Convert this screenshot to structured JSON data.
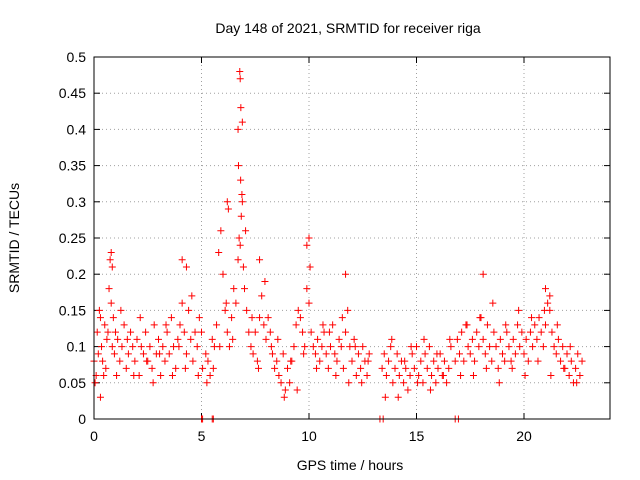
{
  "chart_data": {
    "type": "scatter",
    "title": "Day 148 of 2021, SRMTID for receiver riga",
    "xlabel": "GPS time / hours",
    "ylabel": "SRMTID / TECUs",
    "xlim": [
      0,
      24
    ],
    "ylim": [
      0,
      0.5
    ],
    "xticks": [
      0,
      5,
      10,
      15,
      20
    ],
    "xtick_labels": [
      "0",
      "5",
      "10",
      "15",
      "20"
    ],
    "yticks": [
      0,
      0.05,
      0.1,
      0.15,
      0.2,
      0.25,
      0.3,
      0.35,
      0.4,
      0.45,
      0.5
    ],
    "ytick_labels": [
      "0",
      "0.05",
      "0.1",
      "0.15",
      "0.2",
      "0.25",
      "0.3",
      "0.35",
      "0.4",
      "0.45",
      "0.5"
    ],
    "grid": true,
    "legend": "none",
    "marker_color": "#ff0000",
    "marker": "plus",
    "series": [
      {
        "name": "SRMTID",
        "x": [
          0.0,
          0.1,
          0.15,
          0.2,
          0.25,
          0.3,
          0.35,
          0.4,
          0.5,
          0.55,
          0.6,
          0.7,
          0.75,
          0.8,
          0.85,
          0.9,
          0.95,
          1.0,
          1.1,
          1.2,
          1.3,
          1.4,
          1.5,
          1.6,
          1.7,
          1.8,
          1.9,
          2.0,
          2.1,
          2.2,
          2.3,
          2.4,
          2.5,
          2.6,
          2.7,
          2.8,
          2.9,
          3.0,
          3.1,
          3.2,
          3.3,
          3.4,
          3.5,
          3.6,
          3.7,
          3.8,
          3.9,
          4.0,
          4.1,
          4.2,
          4.3,
          4.4,
          4.5,
          4.6,
          4.7,
          4.8,
          4.9,
          5.0,
          5.05,
          5.6,
          5.2,
          5.3,
          5.4,
          5.5,
          5.7,
          5.8,
          5.9,
          6.0,
          6.1,
          6.2,
          6.3,
          6.4,
          6.5,
          6.6,
          6.7,
          6.75,
          6.8,
          6.85,
          6.9,
          6.95,
          7.0,
          7.1,
          7.2,
          7.3,
          7.4,
          7.5,
          7.6,
          7.7,
          7.8,
          7.9,
          8.0,
          8.1,
          8.2,
          8.3,
          8.4,
          8.5,
          8.6,
          8.7,
          8.8,
          8.9,
          9.0,
          9.1,
          9.2,
          9.3,
          9.4,
          9.5,
          9.6,
          9.7,
          9.8,
          9.9,
          10.0,
          10.1,
          10.2,
          10.3,
          10.4,
          10.5,
          10.6,
          10.7,
          10.8,
          10.9,
          11.0,
          11.1,
          11.2,
          11.3,
          11.4,
          11.5,
          11.6,
          11.7,
          11.8,
          11.9,
          12.0,
          12.1,
          12.2,
          12.3,
          12.4,
          12.5,
          12.6,
          12.7,
          12.8,
          13.4,
          13.5,
          13.6,
          13.7,
          13.8,
          13.9,
          14.0,
          14.1,
          14.2,
          14.3,
          14.4,
          14.5,
          14.6,
          14.7,
          14.8,
          14.9,
          15.0,
          15.1,
          15.2,
          15.3,
          15.4,
          15.5,
          15.6,
          15.7,
          15.8,
          15.9,
          16.0,
          16.1,
          16.2,
          16.3,
          16.4,
          16.5,
          16.6,
          16.8,
          16.9,
          17.0,
          17.1,
          17.2,
          17.3,
          17.4,
          17.5,
          17.6,
          17.7,
          17.8,
          17.9,
          18.0,
          18.1,
          18.2,
          18.3,
          18.4,
          18.5,
          18.6,
          18.7,
          18.8,
          18.9,
          19.0,
          19.1,
          19.2,
          19.3,
          19.4,
          19.5,
          19.6,
          19.7,
          19.8,
          19.9,
          20.0,
          20.1,
          20.2,
          20.3,
          20.4,
          20.5,
          20.6,
          20.7,
          20.8,
          20.9,
          21.0,
          21.1,
          21.2,
          21.3,
          21.4,
          21.5,
          21.6,
          21.7,
          21.8,
          21.9,
          22.0,
          22.1,
          22.2,
          22.3,
          22.4,
          22.5,
          22.6,
          22.7,
          0.05,
          0.3,
          0.45,
          0.65,
          1.05,
          1.25,
          1.55,
          1.85,
          2.15,
          2.45,
          2.75,
          3.05,
          3.35,
          3.65,
          3.95,
          4.25,
          4.55,
          4.85,
          5.25,
          5.55,
          5.85,
          6.15,
          6.45,
          6.72,
          6.82,
          6.88,
          7.05,
          7.35,
          7.65,
          7.95,
          8.25,
          8.55,
          8.85,
          9.15,
          9.45,
          9.75,
          10.05,
          10.35,
          10.65,
          10.95,
          11.25,
          11.55,
          11.85,
          12.15,
          12.45,
          12.75,
          13.55,
          13.85,
          14.15,
          14.45,
          14.75,
          15.05,
          15.35,
          15.65,
          15.95,
          16.25,
          16.55,
          17.05,
          17.35,
          17.65,
          17.95,
          18.25,
          18.55,
          18.85,
          19.15,
          19.45,
          19.75,
          20.05,
          20.35,
          20.65,
          20.95,
          21.25,
          21.55,
          21.85,
          22.15,
          22.45,
          6.78,
          6.8,
          6.83,
          6.9,
          6.7,
          6.2,
          6.25,
          7.7,
          9.9,
          10.0,
          11.7,
          18.1,
          21.0,
          21.2,
          4.1,
          4.3,
          0.8,
          0.85,
          5.0,
          5.05,
          5.5,
          5.55,
          13.3,
          13.45,
          16.8,
          16.95
        ],
        "y": [
          0.08,
          0.06,
          0.12,
          0.09,
          0.15,
          0.03,
          0.1,
          0.08,
          0.13,
          0.07,
          0.11,
          0.18,
          0.22,
          0.16,
          0.1,
          0.14,
          0.09,
          0.12,
          0.11,
          0.08,
          0.1,
          0.13,
          0.07,
          0.09,
          0.12,
          0.1,
          0.08,
          0.11,
          0.06,
          0.1,
          0.09,
          0.12,
          0.08,
          0.1,
          0.07,
          0.13,
          0.09,
          0.11,
          0.06,
          0.1,
          0.08,
          0.12,
          0.09,
          0.14,
          0.1,
          0.07,
          0.11,
          0.13,
          0.16,
          0.12,
          0.09,
          0.15,
          0.11,
          0.08,
          0.12,
          0.1,
          0.14,
          0.12,
          0.07,
          0.1,
          0.09,
          0.08,
          0.06,
          0.11,
          0.13,
          0.23,
          0.26,
          0.2,
          0.15,
          0.12,
          0.1,
          0.14,
          0.18,
          0.16,
          0.22,
          0.25,
          0.24,
          0.28,
          0.3,
          0.21,
          0.18,
          0.15,
          0.12,
          0.1,
          0.09,
          0.12,
          0.08,
          0.14,
          0.17,
          0.13,
          0.11,
          0.14,
          0.12,
          0.09,
          0.07,
          0.08,
          0.06,
          0.05,
          0.09,
          0.04,
          0.07,
          0.05,
          0.08,
          0.1,
          0.13,
          0.15,
          0.14,
          0.12,
          0.1,
          0.18,
          0.16,
          0.12,
          0.1,
          0.09,
          0.11,
          0.08,
          0.1,
          0.12,
          0.09,
          0.07,
          0.1,
          0.13,
          0.09,
          0.08,
          0.11,
          0.1,
          0.07,
          0.12,
          0.15,
          0.1,
          0.08,
          0.11,
          0.06,
          0.09,
          0.07,
          0.1,
          0.08,
          0.06,
          0.09,
          0.07,
          0.09,
          0.06,
          0.08,
          0.1,
          0.05,
          0.07,
          0.09,
          0.06,
          0.08,
          0.05,
          0.07,
          0.04,
          0.06,
          0.09,
          0.07,
          0.1,
          0.06,
          0.08,
          0.05,
          0.09,
          0.07,
          0.1,
          0.06,
          0.08,
          0.05,
          0.07,
          0.09,
          0.06,
          0.08,
          0.05,
          0.07,
          0.1,
          0.08,
          0.11,
          0.09,
          0.12,
          0.08,
          0.13,
          0.1,
          0.09,
          0.11,
          0.08,
          0.12,
          0.1,
          0.14,
          0.11,
          0.09,
          0.13,
          0.1,
          0.08,
          0.12,
          0.1,
          0.07,
          0.11,
          0.09,
          0.08,
          0.12,
          0.1,
          0.08,
          0.11,
          0.09,
          0.13,
          0.1,
          0.12,
          0.09,
          0.11,
          0.08,
          0.12,
          0.1,
          0.13,
          0.11,
          0.14,
          0.12,
          0.1,
          0.13,
          0.16,
          0.15,
          0.12,
          0.1,
          0.09,
          0.11,
          0.08,
          0.1,
          0.07,
          0.09,
          0.06,
          0.08,
          0.05,
          0.07,
          0.09,
          0.06,
          0.08,
          0.05,
          0.14,
          0.06,
          0.12,
          0.06,
          0.15,
          0.11,
          0.06,
          0.14,
          0.08,
          0.05,
          0.09,
          0.13,
          0.06,
          0.1,
          0.07,
          0.17,
          0.06,
          0.05,
          0.07,
          0.1,
          0.16,
          0.11,
          0.35,
          0.33,
          0.31,
          0.26,
          0.14,
          0.07,
          0.19,
          0.1,
          0.11,
          0.03,
          0.08,
          0.04,
          0.09,
          0.21,
          0.07,
          0.13,
          0.12,
          0.06,
          0.14,
          0.05,
          0.1,
          0.05,
          0.08,
          0.03,
          0.11,
          0.03,
          0.08,
          0.1,
          0.05,
          0.11,
          0.04,
          0.09,
          0.06,
          0.11,
          0.06,
          0.13,
          0.06,
          0.14,
          0.07,
          0.16,
          0.05,
          0.13,
          0.07,
          0.15,
          0.06,
          0.14,
          0.08,
          0.15,
          0.06,
          0.13,
          0.07,
          0.1,
          0.05,
          0.48,
          0.47,
          0.43,
          0.41,
          0.4,
          0.3,
          0.29,
          0.22,
          0.24,
          0.25,
          0.2,
          0.2,
          0.18,
          0.17,
          0.22,
          0.21,
          0.23,
          0.21,
          0.0,
          0.0,
          0.0,
          0.0,
          0.0,
          0.0,
          0.0,
          0.0
        ]
      }
    ]
  }
}
